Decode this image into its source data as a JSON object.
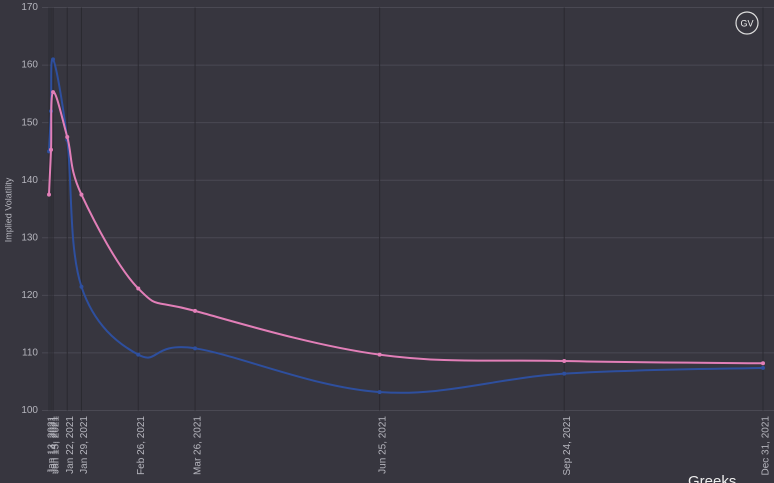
{
  "chart_data": {
    "type": "line",
    "y_label": "Implied Volatility",
    "x": [
      "Jan 13, 2021",
      "Jan 14, 2021",
      "Jan 15, 2021",
      "Jan 22, 2021",
      "Jan 29, 2021",
      "Feb 26, 2021",
      "Mar 26, 2021",
      "Jun 25, 2021",
      "Sep 24, 2021",
      "Dec 31, 2021"
    ],
    "series": [
      {
        "color": "#2e4f9e",
        "values": [
          145,
          152,
          161,
          147,
          121.5,
          109.7,
          110.8,
          103.2,
          106.4,
          107.4
        ]
      },
      {
        "color": "#e27fb8",
        "values": [
          137.5,
          145.3,
          155.3,
          147.5,
          137.5,
          121.2,
          117.3,
          109.7,
          108.6,
          108.2
        ]
      }
    ],
    "ylim": [
      100,
      170
    ],
    "yticks": [
      100,
      110,
      120,
      130,
      140,
      150,
      160,
      170
    ],
    "grid": true,
    "annotations": [
      "GV",
      "Greeks"
    ]
  }
}
